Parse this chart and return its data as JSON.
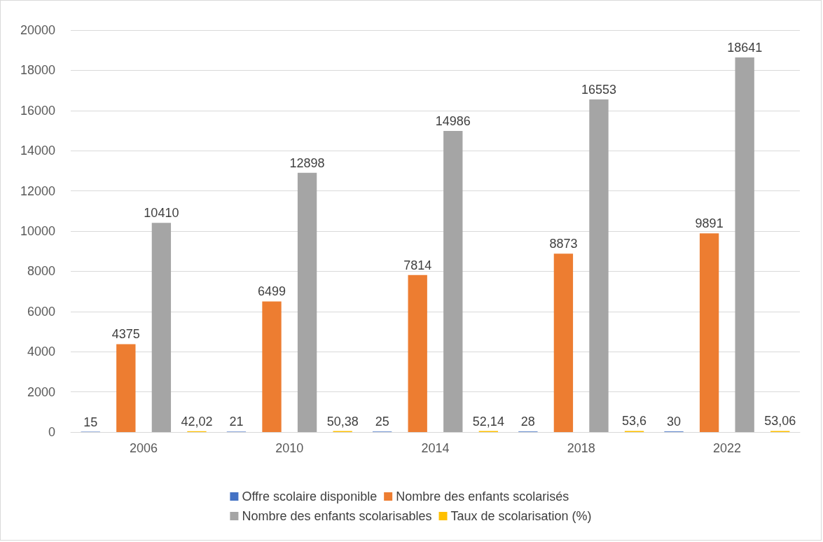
{
  "chart_data": {
    "type": "bar",
    "categories": [
      "2006",
      "2010",
      "2014",
      "2018",
      "2022"
    ],
    "series": [
      {
        "name": "Offre scolaire disponible",
        "color": "#4472c4",
        "values": [
          15,
          21,
          25,
          28,
          30
        ],
        "value_labels": [
          "15",
          "21",
          "25",
          "28",
          "30"
        ]
      },
      {
        "name": "Nombre des enfants scolarisés",
        "color": "#ed7d31",
        "values": [
          4375,
          6499,
          7814,
          8873,
          9891
        ],
        "value_labels": [
          "4375",
          "6499",
          "7814",
          "8873",
          "9891"
        ]
      },
      {
        "name": "Nombre des enfants scolarisables",
        "color": "#a5a5a5",
        "values": [
          10410,
          12898,
          14986,
          16553,
          18641
        ],
        "value_labels": [
          "10410",
          "12898",
          "14986",
          "16553",
          "18641"
        ]
      },
      {
        "name": "Taux de scolarisation (%)",
        "color": "#ffc000",
        "values": [
          42.02,
          50.38,
          52.14,
          53.6,
          53.06
        ],
        "value_labels": [
          "42,02",
          "50,38",
          "52,14",
          "53,6",
          "53,06"
        ]
      }
    ],
    "ylim": [
      0,
      20000
    ],
    "yticks": [
      0,
      2000,
      4000,
      6000,
      8000,
      10000,
      12000,
      14000,
      16000,
      18000,
      20000
    ],
    "grid": "y",
    "legend": "bottom"
  }
}
